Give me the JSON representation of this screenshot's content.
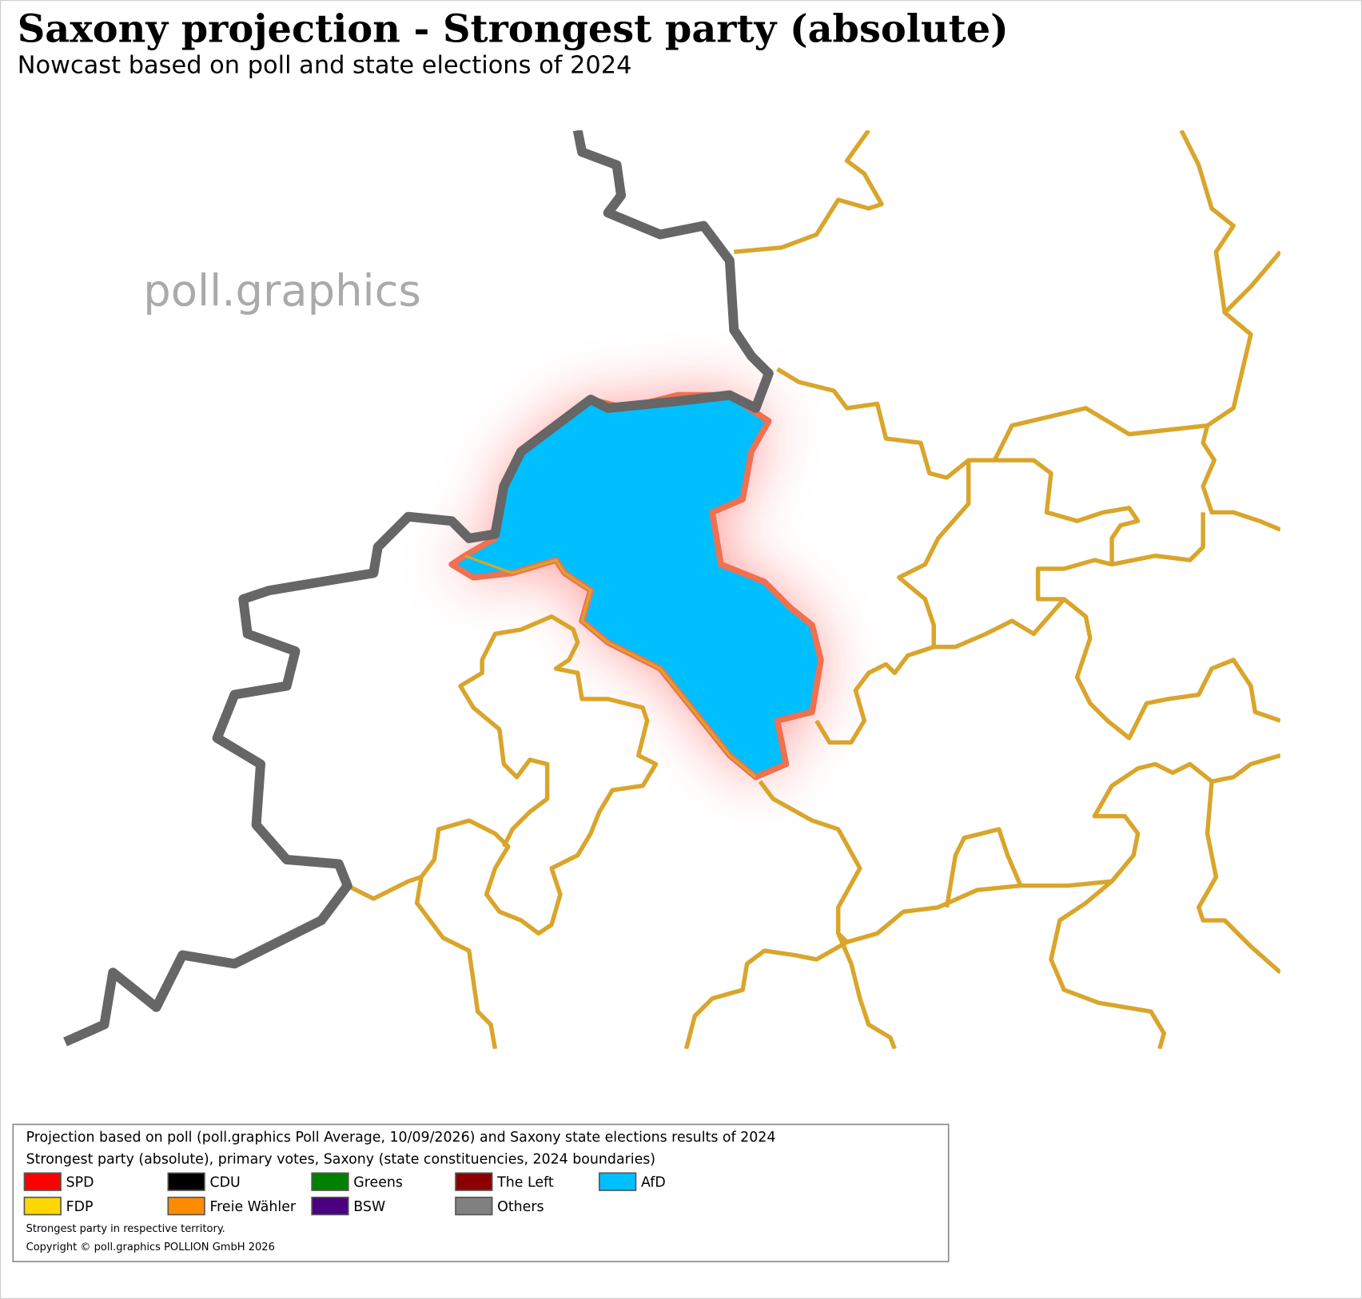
{
  "header": {
    "title": "Saxony projection - Strongest party (absolute)",
    "subtitle": "Nowcast based on poll and state elections of 2024"
  },
  "watermark": "poll.graphics",
  "legend": {
    "lines": [
      "Projection based on poll (poll.graphics Poll Average, 10/09/2026) and Saxony state elections results of 2024",
      "Strongest party (absolute), primary votes, Saxony (state constituencies, 2024 boundaries)"
    ],
    "items": [
      {
        "name": "SPD",
        "color": "#ff0000"
      },
      {
        "name": "CDU",
        "color": "#000000"
      },
      {
        "name": "Greens",
        "color": "#008000"
      },
      {
        "name": "The Left",
        "color": "#8b0000"
      },
      {
        "name": "AfD",
        "color": "#00bfff"
      },
      {
        "name": "FDP",
        "color": "#ffd700"
      },
      {
        "name": "Freie Wähler",
        "color": "#ff8c00"
      },
      {
        "name": "BSW",
        "color": "#4b0082"
      },
      {
        "name": "Others",
        "color": "#808080"
      }
    ],
    "notes": [
      "Strongest party in respective territory.",
      "Copyright © poll.graphics POLLION GmbH 2026"
    ]
  }
}
